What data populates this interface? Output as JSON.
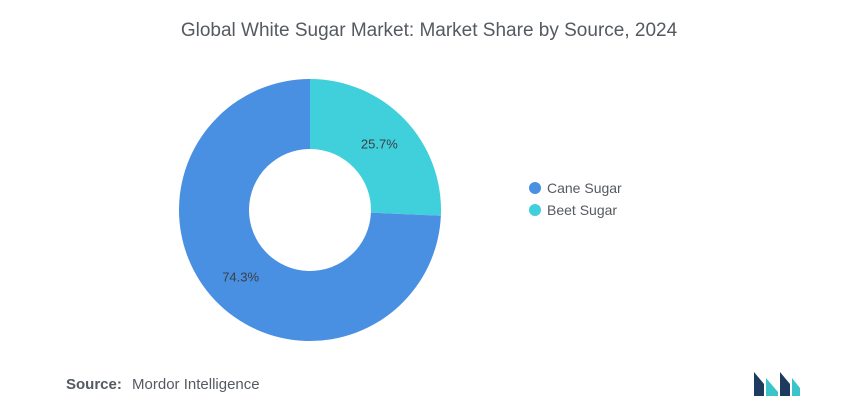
{
  "title": "Global White Sugar Market: Market Share by Source, 2024",
  "chart_data": {
    "type": "pie",
    "donut": true,
    "title": "Global White Sugar Market: Market Share by Source, 2024",
    "categories": [
      "Cane Sugar",
      "Beet Sugar"
    ],
    "values": [
      74.3,
      25.7
    ],
    "data_labels": [
      "74.3%",
      "25.7%"
    ],
    "colors": [
      "#4a90e2",
      "#40d0dc"
    ],
    "legend_position": "right"
  },
  "legend": [
    {
      "label": "Cane Sugar",
      "color": "#4a90e2"
    },
    {
      "label": "Beet Sugar",
      "color": "#40d0dc"
    }
  ],
  "source": {
    "key": "Source:",
    "value": "Mordor Intelligence"
  },
  "logo": {
    "icon": "mordor-intelligence-logo-icon",
    "colors": [
      "#1f3a5f",
      "#3bc4c9"
    ]
  }
}
